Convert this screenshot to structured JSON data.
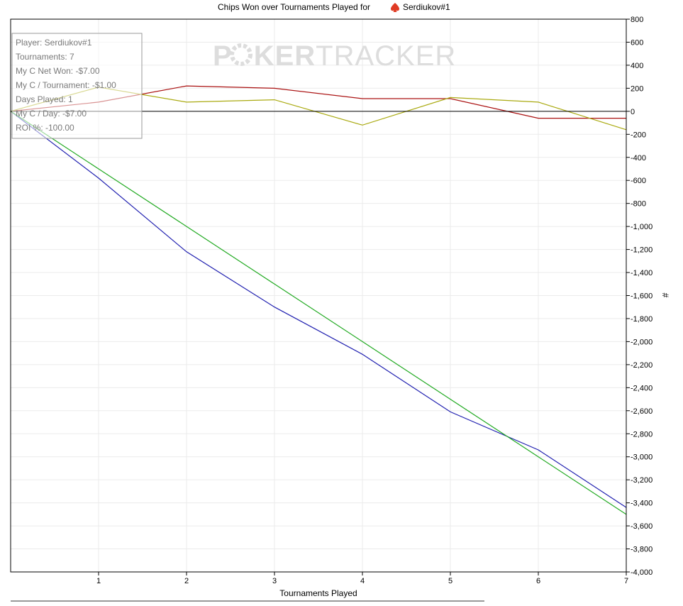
{
  "chart_data": {
    "type": "line",
    "title": "Chips Won over Tournaments Played for",
    "player_name": "Serdiukov#1",
    "player_icon": "poker-spade-icon",
    "xlabel": "Tournaments Played",
    "ylabel": "#",
    "xlim": [
      0,
      7
    ],
    "ylim": [
      -4000,
      800
    ],
    "x_ticks": [
      1,
      2,
      3,
      4,
      5,
      6,
      7
    ],
    "y_ticks": [
      800,
      600,
      400,
      200,
      0,
      -200,
      -400,
      -600,
      -800,
      -1000,
      -1200,
      -1400,
      -1600,
      -1800,
      -2000,
      -2200,
      -2400,
      -2600,
      -2800,
      -3000,
      -3200,
      -3400,
      -3600,
      -3800,
      -4000
    ],
    "y_tick_labels": [
      "800",
      "600",
      "400",
      "200",
      "0",
      "-200",
      "-400",
      "-600",
      "-800",
      "-1,000",
      "-1,200",
      "-1,400",
      "-1,600",
      "-1,800",
      "-2,000",
      "-2,200",
      "-2,400",
      "-2,600",
      "-2,800",
      "-3,000",
      "-3,200",
      "-3,400",
      "-3,600",
      "-3,800",
      "-4,000"
    ],
    "grid": true,
    "x": [
      0,
      1,
      2,
      3,
      4,
      5,
      6,
      7
    ],
    "series": [
      {
        "color": "#2020b0",
        "values": [
          0,
          -580,
          -1220,
          -1700,
          -2110,
          -2610,
          -2940,
          -3440
        ]
      },
      {
        "color": "#22aa22",
        "values": [
          0,
          -500,
          -1000,
          -1500,
          -2000,
          -2500,
          -3000,
          -3500
        ]
      },
      {
        "color": "#aa1111",
        "values": [
          0,
          80,
          220,
          200,
          110,
          110,
          -60,
          -60
        ]
      },
      {
        "color": "#aaaa11",
        "values": [
          0,
          210,
          80,
          100,
          -120,
          120,
          80,
          -160
        ]
      }
    ]
  },
  "watermark": {
    "text_left": "P",
    "text_mid": "KER",
    "text_right": "TRACKER",
    "color": "#dddddd"
  },
  "stats_box": {
    "lines": [
      "Player: Serdiukov#1",
      "Tournaments: 7",
      "My C Net Won: -$7.00",
      "My C / Tournament: -$1.00",
      "Days Played: 1",
      "My C / Day: -$7.00",
      "ROI %: -100.00"
    ]
  },
  "colors": {
    "grid": "#ebebeb",
    "axis": "#000000",
    "zero_line": "#000000",
    "player_icon": "#e03b24"
  }
}
